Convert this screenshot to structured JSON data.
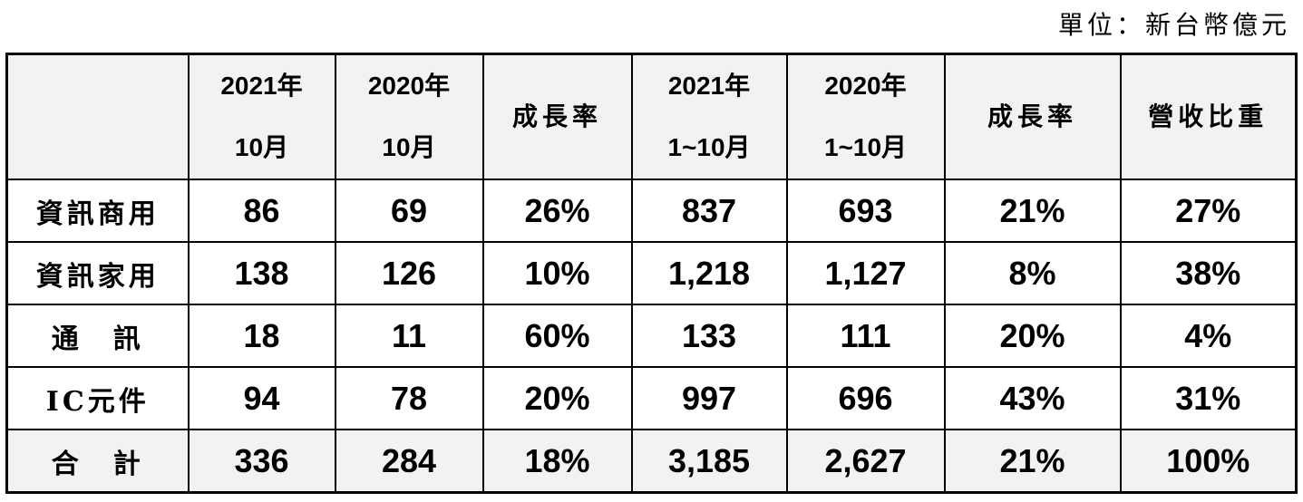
{
  "unit_note": "單位：新台幣億元",
  "table": {
    "header": [
      [
        "2021年",
        "10月"
      ],
      [
        "2020年",
        "10月"
      ],
      [
        "成長率"
      ],
      [
        "2021年",
        "1~10月"
      ],
      [
        "2020年",
        "1~10月"
      ],
      [
        "成長率"
      ],
      [
        "營收比重"
      ]
    ],
    "rows": [
      [
        "資訊商用",
        "86",
        "69",
        "26%",
        "837",
        "693",
        "21%",
        "27%"
      ],
      [
        "資訊家用",
        "138",
        "126",
        "10%",
        "1,218",
        "1,127",
        "8%",
        "38%"
      ],
      [
        "通　訊",
        "18",
        "11",
        "60%",
        "133",
        "111",
        "20%",
        "4%"
      ],
      [
        "IC元件",
        "94",
        "78",
        "20%",
        "997",
        "696",
        "43%",
        "31%"
      ],
      [
        "合　計",
        "336",
        "284",
        "18%",
        "3,185",
        "2,627",
        "21%",
        "100%"
      ]
    ]
  }
}
